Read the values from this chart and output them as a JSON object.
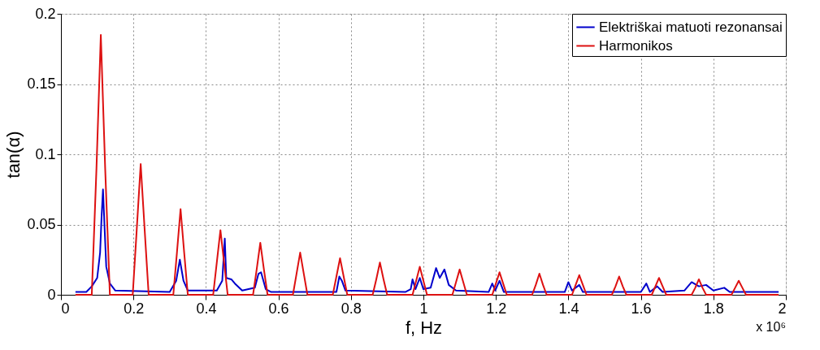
{
  "chart_data": {
    "type": "line",
    "xlabel": "f, Hz",
    "ylabel": "tan(α)",
    "xlim": [
      0,
      2
    ],
    "ylim": [
      0,
      0.2
    ],
    "xticks": [
      0,
      0.2,
      0.4,
      0.6,
      0.8,
      1,
      1.2,
      1.4,
      1.6,
      1.8,
      2
    ],
    "yticks": [
      0,
      0.05,
      0.1,
      0.15,
      0.2
    ],
    "grid": true,
    "legend": "top right",
    "line_style": "solid",
    "marker": "none",
    "annotations": [
      "x 10⁶"
    ],
    "series": [
      {
        "name": "Elektriškai matuoti rezonansai",
        "color": "#0000cc",
        "x": [
          0.04,
          0.07,
          0.085,
          0.1,
          0.108,
          0.112,
          0.116,
          0.12,
          0.125,
          0.135,
          0.15,
          0.3,
          0.318,
          0.328,
          0.338,
          0.35,
          0.43,
          0.445,
          0.452,
          0.456,
          0.47,
          0.48,
          0.5,
          0.535,
          0.545,
          0.552,
          0.565,
          0.58,
          0.76,
          0.768,
          0.775,
          0.785,
          0.95,
          0.965,
          0.97,
          0.978,
          0.99,
          1.0,
          1.02,
          1.035,
          1.045,
          1.058,
          1.07,
          1.09,
          1.18,
          1.19,
          1.198,
          1.21,
          1.222,
          1.39,
          1.4,
          1.41,
          1.43,
          1.44,
          1.6,
          1.615,
          1.625,
          1.645,
          1.66,
          1.72,
          1.74,
          1.76,
          1.78,
          1.8,
          1.83,
          1.845,
          1.98
        ],
        "values": [
          0.002,
          0.002,
          0.006,
          0.012,
          0.03,
          0.055,
          0.075,
          0.05,
          0.02,
          0.008,
          0.003,
          0.002,
          0.01,
          0.025,
          0.01,
          0.003,
          0.003,
          0.01,
          0.04,
          0.012,
          0.011,
          0.008,
          0.003,
          0.005,
          0.015,
          0.016,
          0.004,
          0.002,
          0.002,
          0.013,
          0.01,
          0.003,
          0.002,
          0.004,
          0.011,
          0.004,
          0.012,
          0.004,
          0.005,
          0.019,
          0.012,
          0.018,
          0.007,
          0.003,
          0.002,
          0.008,
          0.003,
          0.01,
          0.002,
          0.002,
          0.009,
          0.003,
          0.007,
          0.002,
          0.002,
          0.008,
          0.002,
          0.006,
          0.002,
          0.003,
          0.009,
          0.006,
          0.007,
          0.003,
          0.005,
          0.002,
          0.002
        ]
      },
      {
        "name": "Harmonikos",
        "color": "#dd1111",
        "x": [
          0.04,
          0.085,
          0.098,
          0.11,
          0.122,
          0.135,
          0.198,
          0.209,
          0.22,
          0.231,
          0.242,
          0.31,
          0.32,
          0.33,
          0.34,
          0.35,
          0.42,
          0.43,
          0.44,
          0.45,
          0.46,
          0.53,
          0.54,
          0.55,
          0.56,
          0.57,
          0.64,
          0.65,
          0.66,
          0.67,
          0.68,
          0.75,
          0.76,
          0.77,
          0.78,
          0.79,
          0.86,
          0.87,
          0.88,
          0.89,
          0.9,
          0.97,
          0.98,
          0.99,
          1.0,
          1.01,
          1.08,
          1.09,
          1.1,
          1.11,
          1.12,
          1.19,
          1.2,
          1.21,
          1.22,
          1.23,
          1.3,
          1.31,
          1.32,
          1.33,
          1.34,
          1.41,
          1.42,
          1.43,
          1.44,
          1.45,
          1.52,
          1.53,
          1.54,
          1.55,
          1.56,
          1.63,
          1.64,
          1.65,
          1.66,
          1.67,
          1.74,
          1.75,
          1.76,
          1.77,
          1.78,
          1.85,
          1.86,
          1.87,
          1.88,
          1.89,
          1.98
        ],
        "values": [
          0,
          0,
          0.09,
          0.185,
          0.09,
          0,
          0,
          0.046,
          0.093,
          0.046,
          0,
          0,
          0.03,
          0.061,
          0.03,
          0,
          0,
          0.023,
          0.046,
          0.023,
          0,
          0,
          0.018,
          0.037,
          0.018,
          0,
          0,
          0.015,
          0.03,
          0.015,
          0,
          0,
          0.013,
          0.026,
          0.013,
          0,
          0,
          0.011,
          0.023,
          0.011,
          0,
          0,
          0.01,
          0.02,
          0.01,
          0,
          0,
          0.009,
          0.018,
          0.009,
          0,
          0,
          0.008,
          0.016,
          0.008,
          0,
          0,
          0.007,
          0.015,
          0.007,
          0,
          0,
          0.007,
          0.014,
          0.007,
          0,
          0,
          0.006,
          0.013,
          0.006,
          0,
          0,
          0.006,
          0.012,
          0.006,
          0,
          0,
          0.005,
          0.011,
          0.005,
          0,
          0,
          0.005,
          0.01,
          0.005,
          0,
          0
        ]
      }
    ]
  }
}
